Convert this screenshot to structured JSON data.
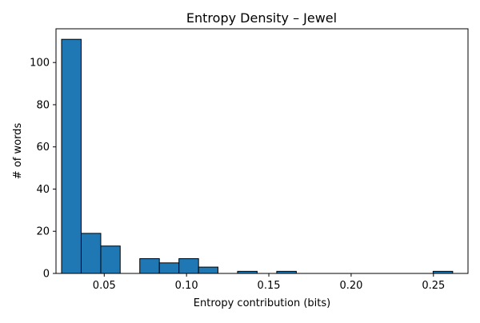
{
  "chart_data": {
    "type": "bar",
    "title": "Entropy Density – Jewel",
    "xlabel": "Entropy contribution (bits)",
    "ylabel": "# of words",
    "xlim": [
      0.0207,
      0.271
    ],
    "ylim": [
      0,
      116
    ],
    "x_ticks": [
      0.05,
      0.1,
      0.15,
      0.2,
      0.25
    ],
    "x_tick_labels": [
      "0.05",
      "0.10",
      "0.15",
      "0.20",
      "0.25"
    ],
    "y_ticks": [
      0,
      20,
      40,
      60,
      80,
      100
    ],
    "y_tick_labels": [
      "0",
      "20",
      "40",
      "60",
      "80",
      "100"
    ],
    "bins": [
      {
        "x0": 0.0241,
        "x1": 0.036,
        "count": 111
      },
      {
        "x0": 0.036,
        "x1": 0.0479,
        "count": 19
      },
      {
        "x0": 0.0479,
        "x1": 0.0597,
        "count": 13
      },
      {
        "x0": 0.0597,
        "x1": 0.0716,
        "count": 0
      },
      {
        "x0": 0.0716,
        "x1": 0.0835,
        "count": 7
      },
      {
        "x0": 0.0835,
        "x1": 0.0954,
        "count": 5
      },
      {
        "x0": 0.0954,
        "x1": 0.1073,
        "count": 7
      },
      {
        "x0": 0.1073,
        "x1": 0.1191,
        "count": 3
      },
      {
        "x0": 0.1191,
        "x1": 0.131,
        "count": 0
      },
      {
        "x0": 0.131,
        "x1": 0.1429,
        "count": 1
      },
      {
        "x0": 0.1429,
        "x1": 0.1548,
        "count": 0
      },
      {
        "x0": 0.1548,
        "x1": 0.1667,
        "count": 1
      },
      {
        "x0": 0.1667,
        "x1": 0.1786,
        "count": 0
      },
      {
        "x0": 0.1786,
        "x1": 0.1904,
        "count": 0
      },
      {
        "x0": 0.1904,
        "x1": 0.2023,
        "count": 0
      },
      {
        "x0": 0.2023,
        "x1": 0.2142,
        "count": 0
      },
      {
        "x0": 0.2142,
        "x1": 0.2261,
        "count": 0
      },
      {
        "x0": 0.2261,
        "x1": 0.238,
        "count": 0
      },
      {
        "x0": 0.238,
        "x1": 0.2498,
        "count": 0
      },
      {
        "x0": 0.2498,
        "x1": 0.2617,
        "count": 1
      }
    ],
    "bar_color": "#1f77b4",
    "bar_edge_color": "#000000",
    "grid": false,
    "legend": "none"
  }
}
